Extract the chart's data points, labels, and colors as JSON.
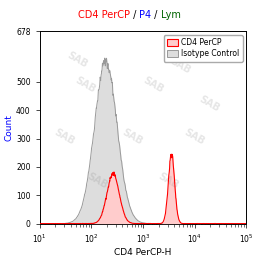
{
  "title_parts": [
    [
      "CD4 PerCP",
      "red"
    ],
    [
      " / ",
      "black"
    ],
    [
      "P4",
      "blue"
    ],
    [
      " / ",
      "black"
    ],
    [
      "Lym",
      "darkgreen"
    ]
  ],
  "xlabel": "CD4 PerCP-H",
  "ylabel": "Count",
  "ylim": [
    0,
    678
  ],
  "yticks": [
    0,
    100,
    200,
    300,
    400,
    500,
    678
  ],
  "isotype_color": "#999999",
  "isotype_fill": "#dddddd",
  "cd4_color": "#ff0000",
  "cd4_fill": "#ffcccc",
  "legend_cd4": "CD4 PerCP",
  "legend_iso": "Isotype Control",
  "background_color": "#ffffff",
  "ylabel_color": "blue",
  "iso_log_mean": 2.28,
  "iso_log_std": 0.22,
  "iso_peak": 570,
  "cd4_dim_mean": 2.42,
  "cd4_dim_std": 0.12,
  "cd4_dim_peak": 175,
  "cd4_bright_mean": 3.55,
  "cd4_bright_std": 0.06,
  "cd4_bright_peak": 245,
  "n_bins": 300
}
